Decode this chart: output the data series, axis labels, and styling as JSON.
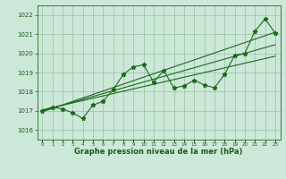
{
  "x": [
    0,
    1,
    2,
    3,
    4,
    5,
    6,
    7,
    8,
    9,
    10,
    11,
    12,
    13,
    14,
    15,
    16,
    17,
    18,
    19,
    20,
    21,
    22,
    23
  ],
  "y": [
    1017.0,
    1017.2,
    1017.1,
    1016.9,
    1016.6,
    1017.3,
    1017.5,
    1018.1,
    1018.9,
    1019.3,
    1019.4,
    1018.5,
    1019.1,
    1018.2,
    1018.3,
    1018.6,
    1018.35,
    1018.2,
    1018.9,
    1019.9,
    1020.0,
    1021.15,
    1021.8,
    1021.05
  ],
  "trend1_x": [
    0,
    23
  ],
  "trend1_y": [
    1016.95,
    1021.1
  ],
  "trend2_x": [
    0,
    23
  ],
  "trend2_y": [
    1017.05,
    1019.85
  ],
  "trend3_x": [
    0,
    23
  ],
  "trend3_y": [
    1017.0,
    1020.45
  ],
  "ylim": [
    1015.5,
    1022.5
  ],
  "xlim": [
    -0.5,
    23.5
  ],
  "yticks": [
    1016,
    1017,
    1018,
    1019,
    1020,
    1021,
    1022
  ],
  "xticks": [
    0,
    1,
    2,
    3,
    4,
    5,
    6,
    7,
    8,
    9,
    10,
    11,
    12,
    13,
    14,
    15,
    16,
    17,
    18,
    19,
    20,
    21,
    22,
    23
  ],
  "xlabel": "Graphe pression niveau de la mer (hPa)",
  "line_color": "#1a6b1a",
  "bg_color": "#cce8d8",
  "grid_color": "#88b898",
  "text_color": "#1a5c1a",
  "marker": "*",
  "marker_size": 3.5,
  "linewidth": 0.8,
  "trend_linewidth": 0.8
}
